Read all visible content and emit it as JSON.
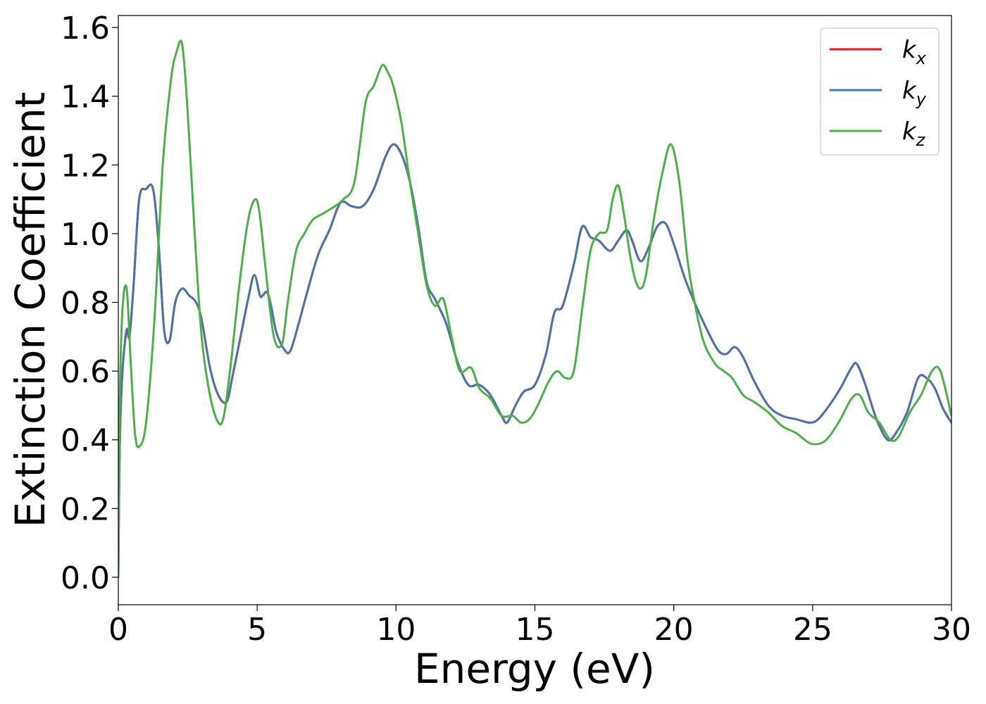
{
  "chart_data": {
    "type": "line",
    "xlabel": "Energy (eV)",
    "ylabel": "Extinction Coefficient",
    "xlim": [
      0,
      30
    ],
    "ylim": [
      -0.08,
      1.635
    ],
    "grid": false,
    "legend_position": "top-right",
    "xticks": [
      "0",
      "5",
      "10",
      "15",
      "20",
      "25",
      "30"
    ],
    "yticks": [
      "0.0",
      "0.2",
      "0.4",
      "0.6",
      "0.8",
      "1.0",
      "1.2",
      "1.4",
      "1.6"
    ],
    "series": [
      {
        "name": "k",
        "subscript": "x",
        "color": "#e41a1c",
        "x": [
          0,
          0.05,
          0.15,
          0.3,
          0.4,
          0.55,
          0.75,
          1.0,
          1.25,
          1.45,
          1.65,
          1.85,
          2.05,
          2.3,
          2.55,
          2.8,
          3.0,
          3.3,
          3.6,
          3.9,
          4.1,
          4.4,
          4.7,
          4.9,
          5.1,
          5.2,
          5.35,
          5.5,
          5.7,
          6.0,
          6.2,
          6.5,
          6.8,
          7.2,
          7.6,
          8.0,
          8.4,
          8.8,
          9.2,
          9.6,
          9.9,
          10.2,
          10.5,
          10.8,
          11.1,
          11.4,
          11.8,
          12.2,
          12.6,
          13.0,
          13.4,
          13.8,
          14.0,
          14.3,
          14.6,
          15.0,
          15.4,
          15.7,
          16.0,
          16.4,
          16.7,
          17.0,
          17.3,
          17.7,
          18.0,
          18.3,
          18.5,
          18.8,
          19.1,
          19.4,
          19.7,
          20.0,
          20.4,
          20.8,
          21.2,
          21.6,
          21.9,
          22.2,
          22.5,
          22.9,
          23.4,
          23.9,
          24.4,
          24.9,
          25.2,
          25.6,
          26.0,
          26.4,
          26.6,
          26.9,
          27.3,
          27.7,
          28.0,
          28.4,
          28.8,
          29.1,
          29.4,
          29.7,
          30.0
        ],
        "y": [
          0.0,
          0.38,
          0.6,
          0.72,
          0.7,
          0.85,
          1.1,
          1.13,
          1.13,
          0.97,
          0.72,
          0.69,
          0.8,
          0.84,
          0.82,
          0.8,
          0.75,
          0.61,
          0.53,
          0.51,
          0.58,
          0.7,
          0.82,
          0.88,
          0.82,
          0.82,
          0.83,
          0.79,
          0.71,
          0.66,
          0.66,
          0.74,
          0.83,
          0.94,
          1.01,
          1.09,
          1.08,
          1.08,
          1.13,
          1.22,
          1.26,
          1.23,
          1.15,
          1.02,
          0.86,
          0.81,
          0.74,
          0.63,
          0.56,
          0.56,
          0.53,
          0.47,
          0.45,
          0.5,
          0.54,
          0.56,
          0.65,
          0.77,
          0.79,
          0.91,
          1.02,
          0.99,
          0.98,
          0.95,
          0.98,
          1.01,
          0.98,
          0.92,
          0.96,
          1.02,
          1.03,
          0.97,
          0.87,
          0.79,
          0.72,
          0.66,
          0.65,
          0.67,
          0.64,
          0.57,
          0.5,
          0.47,
          0.46,
          0.45,
          0.46,
          0.5,
          0.55,
          0.61,
          0.62,
          0.56,
          0.46,
          0.4,
          0.42,
          0.48,
          0.58,
          0.58,
          0.55,
          0.49,
          0.45
        ]
      },
      {
        "name": "k",
        "subscript": "y",
        "color": "#4a74ab",
        "x": [
          0,
          0.05,
          0.15,
          0.3,
          0.4,
          0.55,
          0.75,
          1.0,
          1.25,
          1.45,
          1.65,
          1.85,
          2.05,
          2.3,
          2.55,
          2.8,
          3.0,
          3.3,
          3.6,
          3.9,
          4.1,
          4.4,
          4.7,
          4.9,
          5.1,
          5.2,
          5.35,
          5.5,
          5.7,
          6.0,
          6.2,
          6.5,
          6.8,
          7.2,
          7.6,
          8.0,
          8.4,
          8.8,
          9.2,
          9.6,
          9.9,
          10.2,
          10.5,
          10.8,
          11.1,
          11.4,
          11.8,
          12.2,
          12.6,
          13.0,
          13.4,
          13.8,
          14.0,
          14.3,
          14.6,
          15.0,
          15.4,
          15.7,
          16.0,
          16.4,
          16.7,
          17.0,
          17.3,
          17.7,
          18.0,
          18.3,
          18.5,
          18.8,
          19.1,
          19.4,
          19.7,
          20.0,
          20.4,
          20.8,
          21.2,
          21.6,
          21.9,
          22.2,
          22.5,
          22.9,
          23.4,
          23.9,
          24.4,
          24.9,
          25.2,
          25.6,
          26.0,
          26.4,
          26.6,
          26.9,
          27.3,
          27.7,
          28.0,
          28.4,
          28.8,
          29.1,
          29.4,
          29.7,
          30.0
        ],
        "y": [
          0.0,
          0.38,
          0.6,
          0.72,
          0.7,
          0.85,
          1.1,
          1.13,
          1.13,
          0.97,
          0.72,
          0.69,
          0.8,
          0.84,
          0.82,
          0.8,
          0.75,
          0.61,
          0.53,
          0.51,
          0.58,
          0.7,
          0.82,
          0.88,
          0.82,
          0.82,
          0.83,
          0.79,
          0.71,
          0.66,
          0.66,
          0.74,
          0.83,
          0.94,
          1.01,
          1.09,
          1.08,
          1.08,
          1.13,
          1.22,
          1.26,
          1.23,
          1.15,
          1.02,
          0.86,
          0.81,
          0.74,
          0.63,
          0.56,
          0.56,
          0.53,
          0.47,
          0.45,
          0.5,
          0.54,
          0.56,
          0.65,
          0.77,
          0.79,
          0.91,
          1.02,
          0.99,
          0.98,
          0.95,
          0.98,
          1.01,
          0.98,
          0.92,
          0.96,
          1.02,
          1.03,
          0.97,
          0.87,
          0.79,
          0.72,
          0.66,
          0.65,
          0.67,
          0.64,
          0.57,
          0.5,
          0.47,
          0.46,
          0.45,
          0.46,
          0.5,
          0.55,
          0.61,
          0.62,
          0.56,
          0.46,
          0.4,
          0.42,
          0.48,
          0.58,
          0.58,
          0.55,
          0.49,
          0.45
        ]
      },
      {
        "name": "k",
        "subscript": "z",
        "color": "#4daf4a",
        "x": [
          0,
          0.05,
          0.15,
          0.3,
          0.45,
          0.6,
          0.75,
          1.0,
          1.3,
          1.6,
          1.9,
          2.1,
          2.3,
          2.5,
          2.75,
          3.0,
          3.3,
          3.6,
          3.8,
          4.05,
          4.4,
          4.7,
          4.95,
          5.1,
          5.3,
          5.6,
          5.9,
          6.1,
          6.4,
          6.7,
          7.0,
          7.4,
          7.8,
          8.1,
          8.5,
          8.9,
          9.2,
          9.5,
          9.7,
          9.9,
          10.2,
          10.5,
          10.8,
          11.1,
          11.4,
          11.7,
          12.0,
          12.3,
          12.7,
          13.0,
          13.4,
          13.8,
          14.2,
          14.5,
          14.8,
          15.1,
          15.5,
          15.8,
          16.1,
          16.4,
          16.7,
          17.0,
          17.3,
          17.6,
          17.8,
          18.0,
          18.2,
          18.4,
          18.6,
          18.8,
          19.0,
          19.3,
          19.6,
          19.9,
          20.2,
          20.5,
          20.8,
          21.1,
          21.5,
          21.8,
          22.1,
          22.5,
          22.9,
          23.4,
          23.9,
          24.4,
          24.9,
          25.3,
          25.6,
          26.0,
          26.4,
          26.7,
          27.0,
          27.4,
          27.8,
          28.1,
          28.5,
          28.9,
          29.3,
          29.6,
          30.0
        ],
        "y": [
          0.0,
          0.5,
          0.78,
          0.84,
          0.62,
          0.42,
          0.38,
          0.45,
          0.75,
          1.2,
          1.45,
          1.53,
          1.55,
          1.35,
          1.0,
          0.7,
          0.53,
          0.45,
          0.47,
          0.62,
          0.88,
          1.05,
          1.1,
          1.05,
          0.9,
          0.7,
          0.68,
          0.8,
          0.95,
          1.0,
          1.04,
          1.06,
          1.08,
          1.1,
          1.15,
          1.38,
          1.43,
          1.49,
          1.47,
          1.43,
          1.32,
          1.15,
          1.0,
          0.85,
          0.79,
          0.81,
          0.7,
          0.6,
          0.61,
          0.55,
          0.52,
          0.47,
          0.47,
          0.45,
          0.46,
          0.5,
          0.57,
          0.6,
          0.58,
          0.6,
          0.78,
          0.95,
          1.0,
          1.01,
          1.1,
          1.14,
          1.06,
          0.95,
          0.87,
          0.84,
          0.88,
          1.05,
          1.18,
          1.26,
          1.15,
          0.92,
          0.78,
          0.68,
          0.62,
          0.6,
          0.58,
          0.53,
          0.51,
          0.48,
          0.44,
          0.42,
          0.39,
          0.39,
          0.41,
          0.46,
          0.52,
          0.53,
          0.48,
          0.45,
          0.4,
          0.41,
          0.48,
          0.53,
          0.6,
          0.6,
          0.47
        ]
      }
    ]
  }
}
